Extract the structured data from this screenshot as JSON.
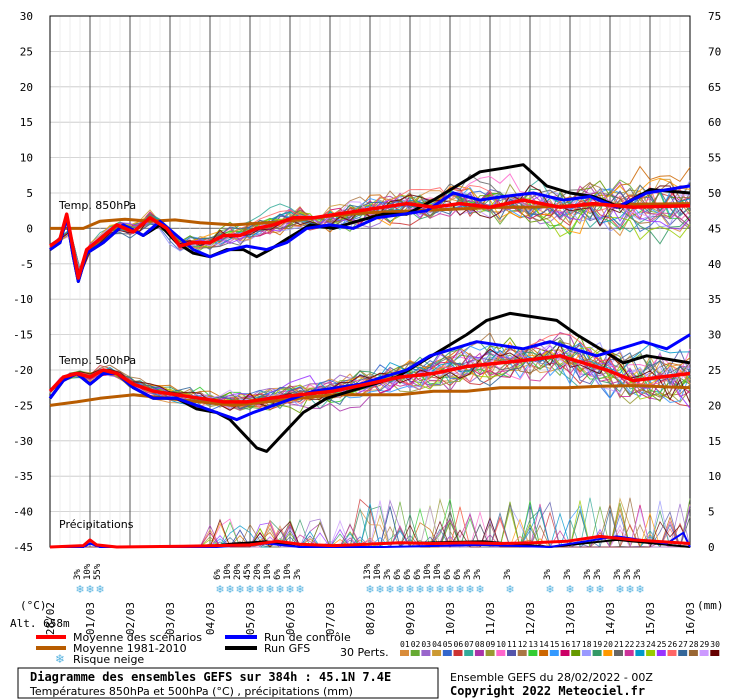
{
  "chart_data": {
    "type": "line",
    "title": "Diagramme des ensembles GEFS sur 384h : 45.1N 7.4E",
    "subtitle": "Températures 850hPa et 500hPa (°C) , précipitations (mm)",
    "run_info": "Ensemble GEFS du 28/02/2022 - 00Z",
    "copyright": "Copyright 2022 Meteociel.fr",
    "altitude": "Alt. 658m",
    "ylabel_left": "(°C)",
    "ylabel_right": "(mm)",
    "y_left_ticks": [
      "30",
      "25",
      "20",
      "15",
      "10",
      "5",
      "0",
      "-5",
      "-10",
      "-15",
      "-20",
      "-25",
      "-30",
      "-35",
      "-40",
      "-45"
    ],
    "y_right_ticks": [
      "75",
      "70",
      "65",
      "60",
      "55",
      "50",
      "45",
      "40",
      "35",
      "30",
      "25",
      "20",
      "15",
      "10",
      "5",
      "0"
    ],
    "ylim_left": [
      -45,
      30
    ],
    "ylim_right": [
      0,
      75
    ],
    "x_dates": [
      "28/02",
      "01/03",
      "02/03",
      "03/03",
      "04/03",
      "05/03",
      "06/03",
      "07/03",
      "08/03",
      "09/03",
      "10/03",
      "11/03",
      "12/03",
      "13/03",
      "14/03",
      "15/03",
      "16/03"
    ],
    "hours_per_step": 6,
    "section_labels": {
      "t850": "Temp. 850hPa",
      "t500": "Temp. 500hPa",
      "precip": "Précipitations"
    },
    "legend": {
      "mean": "Moyenne des scénarios",
      "clim": "Moyenne 1981-2010",
      "control": "Run de contrôle",
      "gfs": "Run GFS",
      "snow": "Risque neige",
      "perts": "30 Perts."
    },
    "colors": {
      "mean": "#ff0000",
      "clim": "#b85c00",
      "control": "#0000ff",
      "gfs": "#000000",
      "snow": "#5ab4e0"
    },
    "member_labels": [
      "01",
      "02",
      "03",
      "04",
      "05",
      "06",
      "07",
      "08",
      "09",
      "10",
      "11",
      "12",
      "13",
      "14",
      "15",
      "16",
      "17",
      "18",
      "19",
      "20",
      "21",
      "22",
      "23",
      "24",
      "25",
      "26",
      "27",
      "28",
      "29",
      "30"
    ],
    "member_colors": [
      "#d98c3a",
      "#66aa33",
      "#9966cc",
      "#cc9933",
      "#3366cc",
      "#cc3333",
      "#33aa99",
      "#aa33aa",
      "#999933",
      "#ff66cc",
      "#5555aa",
      "#aa7744",
      "#33cc33",
      "#cc6600",
      "#3399ff",
      "#cc0066",
      "#669900",
      "#9999ff",
      "#339966",
      "#ff9900",
      "#666666",
      "#cc3399",
      "#0099cc",
      "#99cc00",
      "#9933ff",
      "#ff6666",
      "#336699",
      "#996633",
      "#cc99ff",
      "#660000"
    ],
    "series": {
      "mean_850": [
        [
          0,
          -2.5
        ],
        [
          6,
          -1.5
        ],
        [
          10,
          2
        ],
        [
          14,
          -3
        ],
        [
          17,
          -7
        ],
        [
          22,
          -3
        ],
        [
          30,
          -1.5
        ],
        [
          40,
          0.5
        ],
        [
          50,
          -0.5
        ],
        [
          60,
          1.5
        ],
        [
          70,
          0
        ],
        [
          78,
          -2.5
        ],
        [
          86,
          -2
        ],
        [
          96,
          -2
        ],
        [
          104,
          -1
        ],
        [
          114,
          -1
        ],
        [
          124,
          0
        ],
        [
          134,
          0.5
        ],
        [
          146,
          1.5
        ],
        [
          158,
          1.5
        ],
        [
          172,
          2
        ],
        [
          186,
          2.5
        ],
        [
          200,
          3
        ],
        [
          214,
          3.5
        ],
        [
          230,
          3
        ],
        [
          246,
          3.5
        ],
        [
          264,
          3
        ],
        [
          284,
          4
        ],
        [
          306,
          3
        ],
        [
          326,
          3.5
        ],
        [
          350,
          3
        ],
        [
          384,
          3.2
        ]
      ],
      "clim_850": [
        [
          0,
          0
        ],
        [
          20,
          0
        ],
        [
          30,
          1
        ],
        [
          45,
          1.3
        ],
        [
          60,
          1
        ],
        [
          75,
          1.2
        ],
        [
          90,
          0.8
        ],
        [
          110,
          0.5
        ],
        [
          130,
          0.8
        ],
        [
          150,
          1.2
        ],
        [
          170,
          1.8
        ],
        [
          190,
          2.2
        ],
        [
          210,
          2.4
        ],
        [
          230,
          2.6
        ],
        [
          250,
          2.8
        ],
        [
          270,
          3
        ],
        [
          290,
          3
        ],
        [
          310,
          3.2
        ],
        [
          330,
          3.3
        ],
        [
          350,
          3.4
        ],
        [
          384,
          3.5
        ]
      ],
      "control_850": [
        [
          0,
          -3
        ],
        [
          6,
          -2
        ],
        [
          10,
          1.5
        ],
        [
          14,
          -4
        ],
        [
          17,
          -7.5
        ],
        [
          22,
          -3.5
        ],
        [
          32,
          -2
        ],
        [
          44,
          0.5
        ],
        [
          56,
          -1
        ],
        [
          66,
          1
        ],
        [
          76,
          -1
        ],
        [
          86,
          -3
        ],
        [
          96,
          -4
        ],
        [
          108,
          -3
        ],
        [
          118,
          -2.5
        ],
        [
          130,
          -3
        ],
        [
          142,
          -2
        ],
        [
          154,
          0
        ],
        [
          168,
          0.5
        ],
        [
          182,
          0
        ],
        [
          196,
          1.5
        ],
        [
          212,
          2
        ],
        [
          226,
          2.5
        ],
        [
          242,
          5
        ],
        [
          258,
          4
        ],
        [
          272,
          4.5
        ],
        [
          290,
          5
        ],
        [
          308,
          4
        ],
        [
          324,
          4.5
        ],
        [
          340,
          3
        ],
        [
          358,
          5
        ],
        [
          384,
          6
        ]
      ],
      "gfs_850": [
        [
          0,
          -3
        ],
        [
          6,
          -2
        ],
        [
          10,
          1.5
        ],
        [
          14,
          -4
        ],
        [
          17,
          -7.5
        ],
        [
          22,
          -3.5
        ],
        [
          32,
          -2
        ],
        [
          44,
          0.5
        ],
        [
          56,
          -1
        ],
        [
          66,
          0.5
        ],
        [
          76,
          -2
        ],
        [
          86,
          -3.5
        ],
        [
          96,
          -4
        ],
        [
          106,
          -3
        ],
        [
          116,
          -3
        ],
        [
          124,
          -4
        ],
        [
          132,
          -3
        ],
        [
          142,
          -1.5
        ],
        [
          156,
          0.5
        ],
        [
          170,
          0
        ],
        [
          184,
          1
        ],
        [
          200,
          2
        ],
        [
          214,
          2
        ],
        [
          230,
          4
        ],
        [
          244,
          6
        ],
        [
          258,
          8
        ],
        [
          272,
          8.5
        ],
        [
          284,
          9
        ],
        [
          298,
          6
        ],
        [
          312,
          5
        ],
        [
          326,
          4.5
        ],
        [
          342,
          3
        ],
        [
          360,
          5.5
        ],
        [
          384,
          5
        ]
      ],
      "mean_500": [
        [
          0,
          -23
        ],
        [
          8,
          -21
        ],
        [
          16,
          -20.5
        ],
        [
          24,
          -21
        ],
        [
          32,
          -20
        ],
        [
          40,
          -20.5
        ],
        [
          50,
          -22
        ],
        [
          62,
          -23
        ],
        [
          76,
          -23.5
        ],
        [
          90,
          -24
        ],
        [
          104,
          -24.5
        ],
        [
          118,
          -24.5
        ],
        [
          132,
          -24
        ],
        [
          150,
          -23.5
        ],
        [
          170,
          -23
        ],
        [
          190,
          -22
        ],
        [
          210,
          -21
        ],
        [
          230,
          -20.5
        ],
        [
          250,
          -19.5
        ],
        [
          270,
          -19
        ],
        [
          290,
          -18.5
        ],
        [
          306,
          -18
        ],
        [
          320,
          -19
        ],
        [
          334,
          -20
        ],
        [
          350,
          -21.5
        ],
        [
          366,
          -21
        ],
        [
          384,
          -20.5
        ]
      ],
      "clim_500": [
        [
          0,
          -25
        ],
        [
          16,
          -24.5
        ],
        [
          30,
          -24
        ],
        [
          50,
          -23.5
        ],
        [
          70,
          -24
        ],
        [
          90,
          -24.5
        ],
        [
          110,
          -25
        ],
        [
          130,
          -24.5
        ],
        [
          150,
          -24
        ],
        [
          170,
          -23.5
        ],
        [
          190,
          -23.5
        ],
        [
          210,
          -23.5
        ],
        [
          230,
          -23
        ],
        [
          250,
          -23
        ],
        [
          270,
          -22.5
        ],
        [
          290,
          -22.5
        ],
        [
          310,
          -22.5
        ],
        [
          330,
          -22.3
        ],
        [
          350,
          -22.2
        ],
        [
          384,
          -22.5
        ]
      ],
      "control_500": [
        [
          0,
          -24
        ],
        [
          8,
          -21.5
        ],
        [
          16,
          -20.5
        ],
        [
          24,
          -22
        ],
        [
          32,
          -20.5
        ],
        [
          40,
          -20.5
        ],
        [
          50,
          -22.5
        ],
        [
          62,
          -24
        ],
        [
          76,
          -24
        ],
        [
          88,
          -25
        ],
        [
          100,
          -26
        ],
        [
          112,
          -27
        ],
        [
          122,
          -26
        ],
        [
          134,
          -25
        ],
        [
          146,
          -24
        ],
        [
          158,
          -23
        ],
        [
          172,
          -22.5
        ],
        [
          186,
          -22
        ],
        [
          200,
          -21
        ],
        [
          214,
          -20
        ],
        [
          228,
          -18
        ],
        [
          242,
          -17
        ],
        [
          256,
          -16
        ],
        [
          270,
          -16.5
        ],
        [
          284,
          -17
        ],
        [
          300,
          -16
        ],
        [
          314,
          -17
        ],
        [
          328,
          -18
        ],
        [
          342,
          -17
        ],
        [
          356,
          -16
        ],
        [
          370,
          -17
        ],
        [
          384,
          -15
        ]
      ],
      "gfs_500": [
        [
          0,
          -24
        ],
        [
          8,
          -21.5
        ],
        [
          16,
          -20.5
        ],
        [
          24,
          -22
        ],
        [
          32,
          -20.5
        ],
        [
          40,
          -20.5
        ],
        [
          50,
          -22.5
        ],
        [
          62,
          -24
        ],
        [
          76,
          -24
        ],
        [
          88,
          -25.5
        ],
        [
          100,
          -26
        ],
        [
          108,
          -27
        ],
        [
          116,
          -29
        ],
        [
          124,
          -31
        ],
        [
          130,
          -31.5
        ],
        [
          140,
          -29
        ],
        [
          152,
          -26
        ],
        [
          166,
          -24
        ],
        [
          180,
          -23
        ],
        [
          194,
          -22
        ],
        [
          208,
          -21
        ],
        [
          222,
          -19
        ],
        [
          236,
          -17
        ],
        [
          250,
          -15
        ],
        [
          262,
          -13
        ],
        [
          276,
          -12
        ],
        [
          290,
          -12.5
        ],
        [
          304,
          -13
        ],
        [
          316,
          -15
        ],
        [
          330,
          -17
        ],
        [
          344,
          -19
        ],
        [
          358,
          -18
        ],
        [
          384,
          -19
        ]
      ],
      "mean_precip": [
        [
          0,
          0
        ],
        [
          20,
          0.2
        ],
        [
          24,
          1
        ],
        [
          28,
          0.3
        ],
        [
          40,
          0
        ],
        [
          80,
          0.1
        ],
        [
          100,
          0.2
        ],
        [
          120,
          0.3
        ],
        [
          136,
          0.8
        ],
        [
          150,
          0.4
        ],
        [
          170,
          0.2
        ],
        [
          190,
          0.4
        ],
        [
          210,
          0.6
        ],
        [
          230,
          0.5
        ],
        [
          250,
          0.6
        ],
        [
          270,
          0.5
        ],
        [
          290,
          0.6
        ],
        [
          310,
          0.8
        ],
        [
          330,
          1.5
        ],
        [
          350,
          1
        ],
        [
          384,
          0.5
        ]
      ],
      "control_precip": [
        [
          0,
          0
        ],
        [
          20,
          0
        ],
        [
          24,
          0.5
        ],
        [
          30,
          0
        ],
        [
          100,
          0
        ],
        [
          130,
          0.5
        ],
        [
          150,
          0
        ],
        [
          200,
          0
        ],
        [
          260,
          0.3
        ],
        [
          300,
          0
        ],
        [
          340,
          1.5
        ],
        [
          370,
          0.5
        ],
        [
          380,
          2
        ],
        [
          384,
          0
        ]
      ],
      "gfs_precip": [
        [
          0,
          0
        ],
        [
          20,
          0
        ],
        [
          24,
          1
        ],
        [
          30,
          0
        ],
        [
          90,
          0
        ],
        [
          110,
          0.5
        ],
        [
          130,
          0.8
        ],
        [
          150,
          0
        ],
        [
          200,
          0.5
        ],
        [
          260,
          0.8
        ],
        [
          300,
          0
        ],
        [
          340,
          1
        ],
        [
          384,
          0
        ]
      ]
    },
    "snow_markers": [
      {
        "h": 18,
        "pct": "3%"
      },
      {
        "h": 24,
        "pct": "10%"
      },
      {
        "h": 30,
        "pct": "55%"
      },
      {
        "h": 102,
        "pct": "6%"
      },
      {
        "h": 108,
        "pct": "10%"
      },
      {
        "h": 114,
        "pct": "20%"
      },
      {
        "h": 120,
        "pct": "45%"
      },
      {
        "h": 126,
        "pct": "20%"
      },
      {
        "h": 132,
        "pct": "10%"
      },
      {
        "h": 138,
        "pct": "6%"
      },
      {
        "h": 144,
        "pct": "10%"
      },
      {
        "h": 150,
        "pct": "3%"
      },
      {
        "h": 192,
        "pct": "13%"
      },
      {
        "h": 198,
        "pct": "10%"
      },
      {
        "h": 204,
        "pct": "3%"
      },
      {
        "h": 210,
        "pct": "6%"
      },
      {
        "h": 216,
        "pct": "6%"
      },
      {
        "h": 222,
        "pct": "6%"
      },
      {
        "h": 228,
        "pct": "10%"
      },
      {
        "h": 234,
        "pct": "10%"
      },
      {
        "h": 240,
        "pct": "6%"
      },
      {
        "h": 246,
        "pct": "6%"
      },
      {
        "h": 252,
        "pct": "3%"
      },
      {
        "h": 258,
        "pct": "3%"
      },
      {
        "h": 276,
        "pct": "3%"
      },
      {
        "h": 300,
        "pct": "3%"
      },
      {
        "h": 312,
        "pct": "3%"
      },
      {
        "h": 324,
        "pct": "3%"
      },
      {
        "h": 330,
        "pct": "3%"
      },
      {
        "h": 342,
        "pct": "3%"
      },
      {
        "h": 348,
        "pct": "3%"
      },
      {
        "h": 354,
        "pct": "3%"
      }
    ]
  }
}
